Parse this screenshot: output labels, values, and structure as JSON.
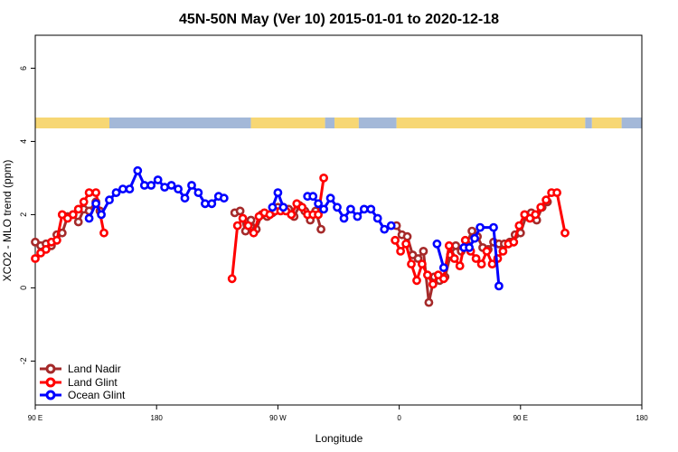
{
  "chart_data": {
    "type": "line",
    "title": "45N-50N May (Ver 10)   2015-01-01 to 2020-12-18",
    "xlabel": "Longitude",
    "ylabel": "XCO2 - MLO trend (ppm)",
    "x_ticks": [
      {
        "value": 90,
        "label": "90 E"
      },
      {
        "value": 180,
        "label": "180"
      },
      {
        "value": 270,
        "label": "90 W"
      },
      {
        "value": 360,
        "label": "0"
      },
      {
        "value": 450,
        "label": "90 E"
      },
      {
        "value": 540,
        "label": "180"
      }
    ],
    "y_ticks": [
      {
        "value": -2,
        "label": "-2"
      },
      {
        "value": 0,
        "label": "0"
      },
      {
        "value": 2,
        "label": "2"
      },
      {
        "value": 4,
        "label": "4"
      },
      {
        "value": 6,
        "label": "6"
      }
    ],
    "xlim": [
      90,
      540
    ],
    "ylim": [
      -3.2,
      6.9
    ],
    "land_mask_colors": {
      "land": "#f7d774",
      "ocean": "#a3b8d8"
    },
    "land_mask_row": [
      [
        90,
        145,
        "land"
      ],
      [
        145,
        250,
        "ocean"
      ],
      [
        250,
        305,
        "land"
      ],
      [
        305,
        312,
        "ocean"
      ],
      [
        312,
        330,
        "land"
      ],
      [
        330,
        358,
        "ocean"
      ],
      [
        358,
        498,
        "land"
      ],
      [
        498,
        503,
        "ocean"
      ],
      [
        503,
        525,
        "land"
      ],
      [
        525,
        540,
        "ocean"
      ]
    ],
    "legend_position": "bottom-left",
    "series": [
      {
        "name": "Land Nadir",
        "color": "#a52a2a",
        "points": [
          [
            90,
            1.25
          ],
          [
            94,
            1.15
          ],
          [
            98,
            1.2
          ],
          [
            102,
            1.15
          ],
          [
            106,
            1.45
          ],
          [
            110,
            1.5
          ],
          [
            114,
            1.95
          ],
          [
            118,
            2.0
          ],
          [
            122,
            1.8
          ],
          [
            126,
            2.15
          ],
          [
            130,
            2.1
          ],
          [
            135,
            2.35
          ],
          [
            138,
            2.1
          ],
          [
            238,
            2.05
          ],
          [
            242,
            2.1
          ],
          [
            246,
            1.55
          ],
          [
            250,
            1.85
          ],
          [
            254,
            1.6
          ],
          [
            258,
            2.0
          ],
          [
            262,
            1.95
          ],
          [
            266,
            2.05
          ],
          [
            270,
            2.2
          ],
          [
            274,
            2.2
          ],
          [
            278,
            2.15
          ],
          [
            282,
            1.95
          ],
          [
            286,
            2.25
          ],
          [
            290,
            2.1
          ],
          [
            294,
            1.85
          ],
          [
            298,
            2.1
          ],
          [
            302,
            1.6
          ],
          [
            358,
            1.7
          ],
          [
            362,
            1.45
          ],
          [
            366,
            1.4
          ],
          [
            370,
            0.9
          ],
          [
            374,
            0.8
          ],
          [
            378,
            1.0
          ],
          [
            382,
            -0.4
          ],
          [
            386,
            0.3
          ],
          [
            390,
            0.2
          ],
          [
            394,
            0.3
          ],
          [
            398,
            0.9
          ],
          [
            402,
            1.15
          ],
          [
            406,
            1.0
          ],
          [
            410,
            1.2
          ],
          [
            414,
            1.55
          ],
          [
            418,
            1.4
          ],
          [
            422,
            1.1
          ],
          [
            426,
            1.05
          ],
          [
            430,
            1.25
          ],
          [
            434,
            1.2
          ],
          [
            438,
            1.2
          ],
          [
            442,
            1.25
          ],
          [
            446,
            1.45
          ],
          [
            450,
            1.5
          ],
          [
            454,
            1.95
          ],
          [
            458,
            2.05
          ],
          [
            462,
            1.85
          ],
          [
            466,
            2.2
          ],
          [
            470,
            2.35
          ]
        ]
      },
      {
        "name": "Land Glint",
        "color": "#ff0000",
        "points": [
          [
            90,
            0.8
          ],
          [
            94,
            0.95
          ],
          [
            98,
            1.05
          ],
          [
            102,
            1.25
          ],
          [
            106,
            1.3
          ],
          [
            110,
            2.0
          ],
          [
            114,
            1.9
          ],
          [
            118,
            2.0
          ],
          [
            122,
            2.15
          ],
          [
            126,
            2.35
          ],
          [
            130,
            2.6
          ],
          [
            135,
            2.6
          ],
          [
            141,
            1.5
          ],
          [
            236,
            0.25
          ],
          [
            240,
            1.7
          ],
          [
            244,
            1.9
          ],
          [
            248,
            1.7
          ],
          [
            252,
            1.5
          ],
          [
            256,
            1.95
          ],
          [
            260,
            2.05
          ],
          [
            264,
            2.0
          ],
          [
            268,
            2.1
          ],
          [
            272,
            2.1
          ],
          [
            276,
            2.1
          ],
          [
            280,
            2.0
          ],
          [
            284,
            2.3
          ],
          [
            288,
            2.2
          ],
          [
            292,
            2.0
          ],
          [
            296,
            2.0
          ],
          [
            300,
            2.0
          ],
          [
            304,
            3.0
          ],
          [
            357,
            1.3
          ],
          [
            361,
            1.0
          ],
          [
            365,
            1.2
          ],
          [
            369,
            0.65
          ],
          [
            373,
            0.2
          ],
          [
            377,
            0.65
          ],
          [
            381,
            0.35
          ],
          [
            385,
            0.1
          ],
          [
            389,
            0.35
          ],
          [
            393,
            0.25
          ],
          [
            397,
            1.15
          ],
          [
            401,
            0.8
          ],
          [
            405,
            0.6
          ],
          [
            409,
            1.3
          ],
          [
            413,
            1.0
          ],
          [
            417,
            0.8
          ],
          [
            421,
            0.65
          ],
          [
            425,
            1.0
          ],
          [
            429,
            0.65
          ],
          [
            433,
            0.8
          ],
          [
            437,
            1.0
          ],
          [
            441,
            1.2
          ],
          [
            445,
            1.25
          ],
          [
            449,
            1.7
          ],
          [
            453,
            2.0
          ],
          [
            457,
            1.9
          ],
          [
            461,
            2.0
          ],
          [
            465,
            2.2
          ],
          [
            469,
            2.4
          ],
          [
            473,
            2.6
          ],
          [
            477,
            2.6
          ],
          [
            483,
            1.5
          ]
        ]
      },
      {
        "name": "Ocean Glint",
        "color": "#0000ff",
        "points": [
          [
            130,
            1.9
          ],
          [
            135,
            2.3
          ],
          [
            139,
            2.0
          ],
          [
            145,
            2.4
          ],
          [
            150,
            2.6
          ],
          [
            155,
            2.7
          ],
          [
            160,
            2.7
          ],
          [
            166,
            3.2
          ],
          [
            171,
            2.8
          ],
          [
            176,
            2.8
          ],
          [
            181,
            2.95
          ],
          [
            186,
            2.75
          ],
          [
            191,
            2.8
          ],
          [
            196,
            2.7
          ],
          [
            201,
            2.45
          ],
          [
            206,
            2.8
          ],
          [
            211,
            2.6
          ],
          [
            216,
            2.3
          ],
          [
            221,
            2.3
          ],
          [
            226,
            2.5
          ],
          [
            230,
            2.45
          ],
          [
            266,
            2.2
          ],
          [
            270,
            2.6
          ],
          [
            274,
            2.2
          ],
          [
            292,
            2.5
          ],
          [
            296,
            2.5
          ],
          [
            300,
            2.3
          ],
          [
            304,
            2.15
          ],
          [
            309,
            2.45
          ],
          [
            314,
            2.2
          ],
          [
            319,
            1.9
          ],
          [
            324,
            2.15
          ],
          [
            329,
            1.95
          ],
          [
            334,
            2.15
          ],
          [
            339,
            2.15
          ],
          [
            344,
            1.9
          ],
          [
            349,
            1.6
          ],
          [
            354,
            1.7
          ],
          [
            388,
            1.2
          ],
          [
            393,
            0.55
          ],
          [
            408,
            1.1
          ],
          [
            412,
            1.1
          ],
          [
            416,
            1.35
          ],
          [
            420,
            1.65
          ],
          [
            430,
            1.65
          ],
          [
            434,
            0.05
          ]
        ]
      }
    ]
  }
}
